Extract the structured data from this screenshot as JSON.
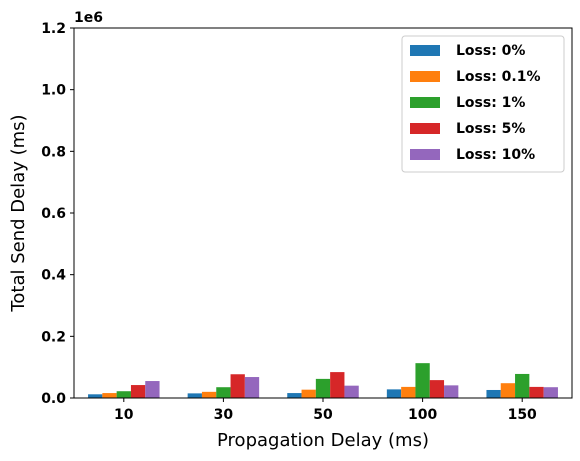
{
  "chart_data": {
    "type": "bar",
    "xlabel": "Propagation Delay (ms)",
    "ylabel": "Total Send Delay (ms)",
    "y_multiplier": "1e6",
    "ylim": [
      0,
      1.2
    ],
    "y_ticks": [
      "0.0",
      "0.2",
      "0.4",
      "0.6",
      "0.8",
      "1.0",
      "1.2"
    ],
    "categories": [
      "10",
      "30",
      "50",
      "100",
      "150"
    ],
    "legend_position": "top-right",
    "grid": false,
    "series": [
      {
        "name": "Loss: 0%",
        "color": "#1f77b4",
        "values": [
          0.012,
          0.015,
          0.016,
          0.028,
          0.026
        ]
      },
      {
        "name": "Loss: 0.1%",
        "color": "#ff7f0e",
        "values": [
          0.016,
          0.02,
          0.027,
          0.036,
          0.048
        ]
      },
      {
        "name": "Loss: 1%",
        "color": "#2ca02c",
        "values": [
          0.022,
          0.035,
          0.062,
          0.113,
          0.078
        ]
      },
      {
        "name": "Loss: 5%",
        "color": "#d62728",
        "values": [
          0.042,
          0.077,
          0.084,
          0.058,
          0.036
        ]
      },
      {
        "name": "Loss: 10%",
        "color": "#9467bd",
        "values": [
          0.055,
          0.068,
          0.04,
          0.041,
          0.035
        ]
      }
    ]
  }
}
